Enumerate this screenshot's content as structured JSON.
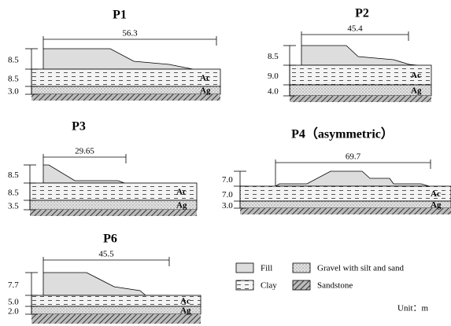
{
  "panels": [
    {
      "title": "P1",
      "width": "56.3",
      "thickness": [
        "8.5",
        "8.5",
        "3.0"
      ],
      "layers": [
        "Ac",
        "Ag"
      ]
    },
    {
      "title": "P2",
      "width": "45.4",
      "thickness": [
        "8.5",
        "9.0",
        "4.0"
      ],
      "layers": [
        "Ac",
        "Ag"
      ]
    },
    {
      "title": "P3",
      "width": "29.65",
      "thickness": [
        "8.5",
        "8.5",
        "3.5"
      ],
      "layers": [
        "Ac",
        "Ag"
      ]
    },
    {
      "title": "P4（asymmetric）",
      "width": "69.7",
      "thickness": [
        "7.0",
        "7.0",
        "3.0"
      ],
      "layers": [
        "Ac",
        "Ag"
      ]
    },
    {
      "title": "P6",
      "width": "45.5",
      "thickness": [
        "7.7",
        "5.0",
        "2.0"
      ],
      "layers": [
        "Ac",
        "Ag"
      ]
    }
  ],
  "legend": [
    "Fill",
    "Clay",
    "Gravel with silt and sand",
    "Sandstone"
  ],
  "unit": "Unit：m"
}
